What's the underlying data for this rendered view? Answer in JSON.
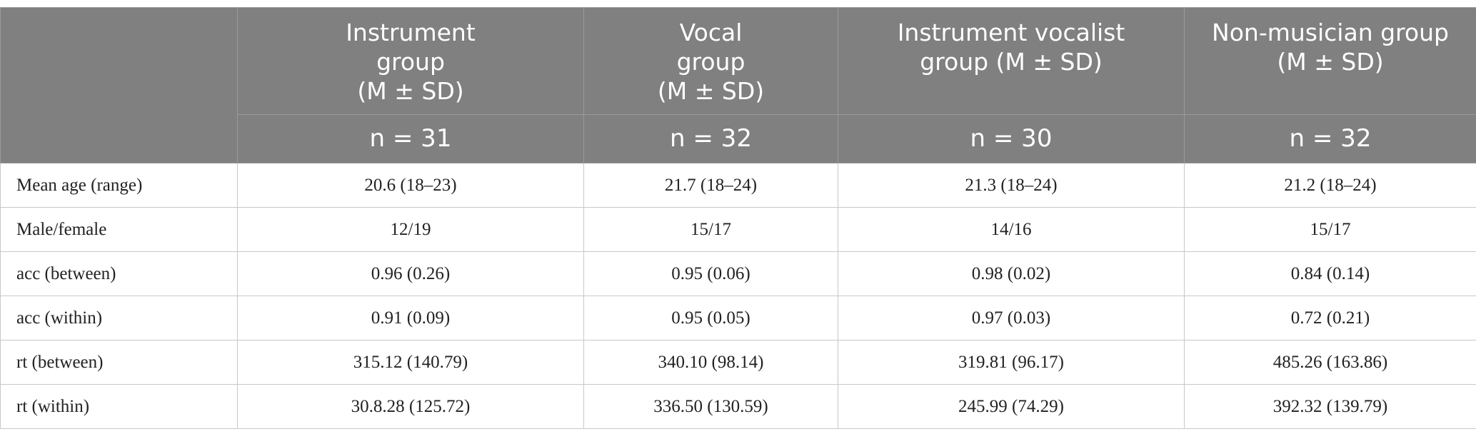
{
  "table": {
    "header": [
      [
        "Instrument",
        "group",
        "(M ± SD)"
      ],
      [
        "Vocal",
        "group",
        "(M ± SD)"
      ],
      [
        "Instrument vocalist",
        "group (M ± SD)"
      ],
      [
        "Non-musician group",
        "(M ± SD)"
      ]
    ],
    "n_row": [
      "n = 31",
      "n = 32",
      "n = 30",
      "n = 32"
    ],
    "rows": [
      [
        "Mean age (range)",
        "20.6 (18–23)",
        "21.7 (18–24)",
        "21.3 (18–24)",
        "21.2 (18–24)"
      ],
      [
        "Male/female",
        "12/19",
        "15/17",
        "14/16",
        "15/17"
      ],
      [
        "acc (between)",
        "0.96 (0.26)",
        "0.95 (0.06)",
        "0.98 (0.02)",
        "0.84 (0.14)"
      ],
      [
        "acc (within)",
        "0.91 (0.09)",
        "0.95 (0.05)",
        "0.97 (0.03)",
        "0.72 (0.21)"
      ],
      [
        "rt (between)",
        "315.12 (140.79)",
        "340.10 (98.14)",
        "319.81 (96.17)",
        "485.26 (163.86)"
      ],
      [
        "rt (within)",
        "30.8.28 (125.72)",
        "336.50 (130.59)",
        "245.99 (74.29)",
        "392.32 (139.79)"
      ]
    ]
  }
}
